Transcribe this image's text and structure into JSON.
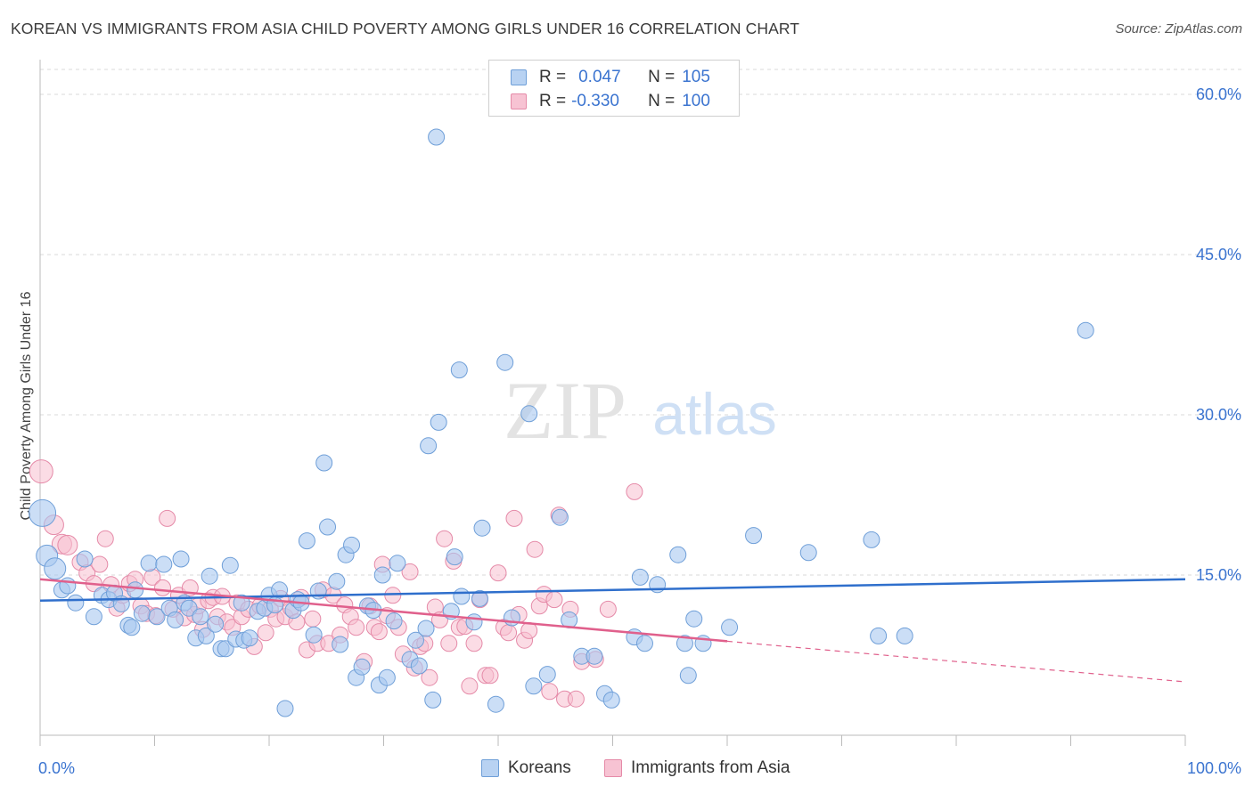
{
  "header": {
    "title": "KOREAN VS IMMIGRANTS FROM ASIA CHILD POVERTY AMONG GIRLS UNDER 16 CORRELATION CHART",
    "source": "Source: ZipAtlas.com"
  },
  "watermark": {
    "zip": "ZIP",
    "atlas": "atlas"
  },
  "legend": {
    "rows": [
      {
        "r_label": "R =",
        "r_value": "0.047",
        "n_label": "N =",
        "n_value": "105"
      },
      {
        "r_label": "R =",
        "r_value": "-0.330",
        "n_label": "N =",
        "n_value": "100"
      }
    ]
  },
  "colors": {
    "koreans_fill": "#a9c8f0",
    "koreans_stroke": "#6f9fd8",
    "koreans_line": "#2f6fcc",
    "asia_fill": "#f7bfd0",
    "asia_stroke": "#e58aa8",
    "asia_line": "#e0608c",
    "grid": "#d8d8d8",
    "tick_label": "#3b74d0"
  },
  "chart_data": {
    "type": "scatter",
    "title": "KOREAN VS IMMIGRANTS FROM ASIA CHILD POVERTY AMONG GIRLS UNDER 16 CORRELATION CHART",
    "xlabel": "",
    "ylabel": "Child Poverty Among Girls Under 16",
    "xlim": [
      0,
      100
    ],
    "ylim": [
      0,
      63
    ],
    "x_tick_labels": [
      "0.0%",
      "100.0%"
    ],
    "y_ticks": [
      15,
      30,
      45,
      60
    ],
    "y_tick_labels": [
      "15.0%",
      "30.0%",
      "45.0%",
      "60.0%"
    ],
    "grid": true,
    "legend_position": "top-center",
    "series": [
      {
        "name": "Koreans",
        "r": 0.047,
        "n": 105,
        "trend": {
          "x": [
            0,
            100
          ],
          "y": [
            12.6,
            14.6
          ]
        },
        "points": [
          [
            0.2,
            20.8
          ],
          [
            0.6,
            16.8
          ],
          [
            1.3,
            15.6
          ],
          [
            1.9,
            13.6
          ],
          [
            2.4,
            14.0
          ],
          [
            3.1,
            12.4
          ],
          [
            3.9,
            16.5
          ],
          [
            4.7,
            11.1
          ],
          [
            5.4,
            13.1
          ],
          [
            6.0,
            12.7
          ],
          [
            6.5,
            13.3
          ],
          [
            7.1,
            12.3
          ],
          [
            7.7,
            10.3
          ],
          [
            8.0,
            10.1
          ],
          [
            8.3,
            13.6
          ],
          [
            8.9,
            11.4
          ],
          [
            9.5,
            16.1
          ],
          [
            10.2,
            11.1
          ],
          [
            10.8,
            16.0
          ],
          [
            11.3,
            11.9
          ],
          [
            11.8,
            10.8
          ],
          [
            12.3,
            16.5
          ],
          [
            12.6,
            12.4
          ],
          [
            13.0,
            11.9
          ],
          [
            13.6,
            9.1
          ],
          [
            14.0,
            11.1
          ],
          [
            14.5,
            9.3
          ],
          [
            14.8,
            14.9
          ],
          [
            15.3,
            10.4
          ],
          [
            15.8,
            8.1
          ],
          [
            16.2,
            8.1
          ],
          [
            16.6,
            15.9
          ],
          [
            17.1,
            9.0
          ],
          [
            17.6,
            12.4
          ],
          [
            17.8,
            8.9
          ],
          [
            18.3,
            9.1
          ],
          [
            19.0,
            11.6
          ],
          [
            19.6,
            11.9
          ],
          [
            20.0,
            13.1
          ],
          [
            20.5,
            12.2
          ],
          [
            20.9,
            13.6
          ],
          [
            21.4,
            2.5
          ],
          [
            22.1,
            11.7
          ],
          [
            22.5,
            12.7
          ],
          [
            22.8,
            12.4
          ],
          [
            23.3,
            18.2
          ],
          [
            23.9,
            9.4
          ],
          [
            24.3,
            13.5
          ],
          [
            24.8,
            25.5
          ],
          [
            25.1,
            19.5
          ],
          [
            25.9,
            14.4
          ],
          [
            26.2,
            8.5
          ],
          [
            26.7,
            16.9
          ],
          [
            27.2,
            17.8
          ],
          [
            27.6,
            5.4
          ],
          [
            28.1,
            6.4
          ],
          [
            28.6,
            12.1
          ],
          [
            29.1,
            11.7
          ],
          [
            29.6,
            4.7
          ],
          [
            29.9,
            15.0
          ],
          [
            30.3,
            5.4
          ],
          [
            30.9,
            10.7
          ],
          [
            31.2,
            16.1
          ],
          [
            32.3,
            7.1
          ],
          [
            32.8,
            8.9
          ],
          [
            33.1,
            6.5
          ],
          [
            33.7,
            10.0
          ],
          [
            33.9,
            27.1
          ],
          [
            34.3,
            3.3
          ],
          [
            34.6,
            56.0
          ],
          [
            34.8,
            29.3
          ],
          [
            35.9,
            11.6
          ],
          [
            36.2,
            16.7
          ],
          [
            36.6,
            34.2
          ],
          [
            36.8,
            13.0
          ],
          [
            37.9,
            10.6
          ],
          [
            38.4,
            12.8
          ],
          [
            38.6,
            19.4
          ],
          [
            39.8,
            2.9
          ],
          [
            40.6,
            34.9
          ],
          [
            41.2,
            11.0
          ],
          [
            42.7,
            30.1
          ],
          [
            43.1,
            4.6
          ],
          [
            44.3,
            5.7
          ],
          [
            45.4,
            20.4
          ],
          [
            46.2,
            10.8
          ],
          [
            47.3,
            7.4
          ],
          [
            48.4,
            7.4
          ],
          [
            49.3,
            3.9
          ],
          [
            49.9,
            3.3
          ],
          [
            51.9,
            9.2
          ],
          [
            52.4,
            14.8
          ],
          [
            52.8,
            8.6
          ],
          [
            53.9,
            14.1
          ],
          [
            55.7,
            16.9
          ],
          [
            56.3,
            8.6
          ],
          [
            56.6,
            5.6
          ],
          [
            57.1,
            10.9
          ],
          [
            57.9,
            8.6
          ],
          [
            60.2,
            10.1
          ],
          [
            62.3,
            18.7
          ],
          [
            67.1,
            17.1
          ],
          [
            72.6,
            18.3
          ],
          [
            73.2,
            9.3
          ],
          [
            75.5,
            9.3
          ],
          [
            91.3,
            37.9
          ]
        ]
      },
      {
        "name": "Immigrants from Asia",
        "r": -0.33,
        "n": 100,
        "trend": {
          "x": [
            0,
            60
          ],
          "y": [
            14.6,
            8.8
          ]
        },
        "trend_dashed": {
          "x": [
            60,
            100
          ],
          "y": [
            8.8,
            5.0
          ]
        },
        "points": [
          [
            0.1,
            24.7
          ],
          [
            1.2,
            19.7
          ],
          [
            1.9,
            17.9
          ],
          [
            2.4,
            17.8
          ],
          [
            3.5,
            16.2
          ],
          [
            4.1,
            15.2
          ],
          [
            4.7,
            14.2
          ],
          [
            5.2,
            16.0
          ],
          [
            5.7,
            18.4
          ],
          [
            6.2,
            14.1
          ],
          [
            6.7,
            11.9
          ],
          [
            7.2,
            13.1
          ],
          [
            7.8,
            14.2
          ],
          [
            8.3,
            14.6
          ],
          [
            8.8,
            12.1
          ],
          [
            9.3,
            11.4
          ],
          [
            9.8,
            14.8
          ],
          [
            10.1,
            11.2
          ],
          [
            10.7,
            13.8
          ],
          [
            11.1,
            20.3
          ],
          [
            11.6,
            11.8
          ],
          [
            12.1,
            13.1
          ],
          [
            12.6,
            11.0
          ],
          [
            13.1,
            13.8
          ],
          [
            13.5,
            11.3
          ],
          [
            13.8,
            12.1
          ],
          [
            14.2,
            9.9
          ],
          [
            14.7,
            12.6
          ],
          [
            15.1,
            12.9
          ],
          [
            15.5,
            11.1
          ],
          [
            15.9,
            13.0
          ],
          [
            16.3,
            10.6
          ],
          [
            16.8,
            10.1
          ],
          [
            17.2,
            12.4
          ],
          [
            17.6,
            11.1
          ],
          [
            18.2,
            11.8
          ],
          [
            18.7,
            8.3
          ],
          [
            19.2,
            12.1
          ],
          [
            19.7,
            9.6
          ],
          [
            20.1,
            11.8
          ],
          [
            20.6,
            10.9
          ],
          [
            21.0,
            12.8
          ],
          [
            21.4,
            11.1
          ],
          [
            21.9,
            11.9
          ],
          [
            22.4,
            10.6
          ],
          [
            22.8,
            12.9
          ],
          [
            23.3,
            8.0
          ],
          [
            23.8,
            10.9
          ],
          [
            24.2,
            8.6
          ],
          [
            24.7,
            13.6
          ],
          [
            25.2,
            8.6
          ],
          [
            25.6,
            13.1
          ],
          [
            26.2,
            9.4
          ],
          [
            26.6,
            12.2
          ],
          [
            27.1,
            11.1
          ],
          [
            27.6,
            10.1
          ],
          [
            28.3,
            6.9
          ],
          [
            28.8,
            12.1
          ],
          [
            29.2,
            10.1
          ],
          [
            29.6,
            9.7
          ],
          [
            29.9,
            16.0
          ],
          [
            30.3,
            11.2
          ],
          [
            30.8,
            13.1
          ],
          [
            31.3,
            10.1
          ],
          [
            31.7,
            7.6
          ],
          [
            32.3,
            15.3
          ],
          [
            32.7,
            6.3
          ],
          [
            33.2,
            8.3
          ],
          [
            33.6,
            8.6
          ],
          [
            34.0,
            5.4
          ],
          [
            34.5,
            12.0
          ],
          [
            34.9,
            10.8
          ],
          [
            35.3,
            18.4
          ],
          [
            35.7,
            8.6
          ],
          [
            36.1,
            16.3
          ],
          [
            36.6,
            10.1
          ],
          [
            37.1,
            10.2
          ],
          [
            37.5,
            4.6
          ],
          [
            37.9,
            8.6
          ],
          [
            38.4,
            12.7
          ],
          [
            38.9,
            5.6
          ],
          [
            39.3,
            5.6
          ],
          [
            40.0,
            15.2
          ],
          [
            40.5,
            10.1
          ],
          [
            40.9,
            9.6
          ],
          [
            41.4,
            20.3
          ],
          [
            41.8,
            11.3
          ],
          [
            42.3,
            8.9
          ],
          [
            42.7,
            9.8
          ],
          [
            43.2,
            17.4
          ],
          [
            43.6,
            12.1
          ],
          [
            44.0,
            13.2
          ],
          [
            44.5,
            4.1
          ],
          [
            44.9,
            12.7
          ],
          [
            45.3,
            20.6
          ],
          [
            45.8,
            3.4
          ],
          [
            46.3,
            11.8
          ],
          [
            46.8,
            3.4
          ],
          [
            47.3,
            6.9
          ],
          [
            48.5,
            7.1
          ],
          [
            49.6,
            11.8
          ],
          [
            51.9,
            22.8
          ]
        ]
      }
    ]
  },
  "bottom_legend": {
    "items": [
      "Koreans",
      "Immigrants from Asia"
    ]
  }
}
